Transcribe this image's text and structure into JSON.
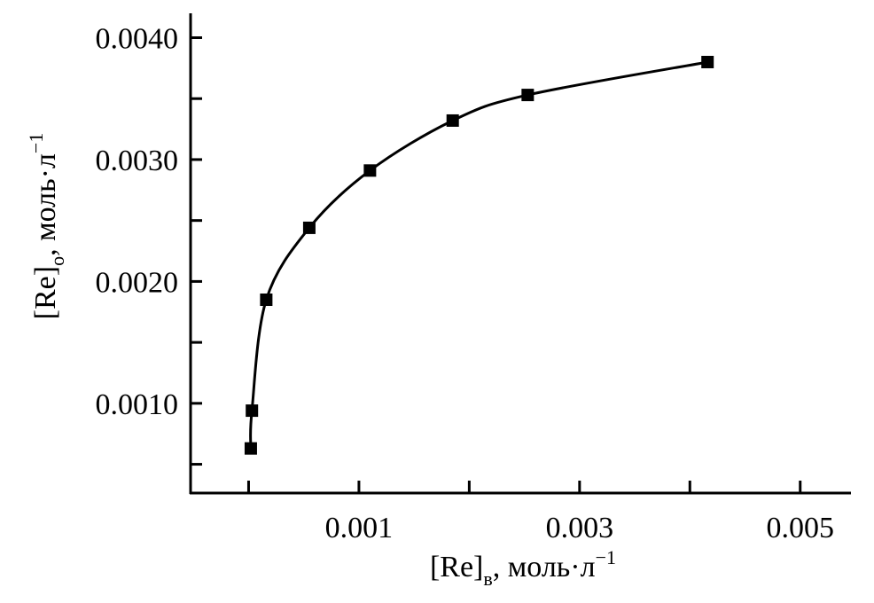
{
  "chart_data": {
    "type": "scatter",
    "x": [
      2e-05,
      3e-05,
      0.00016,
      0.00055,
      0.0011,
      0.00185,
      0.00253,
      0.00416
    ],
    "series": [
      {
        "color": "#000000",
        "values": [
          0.00063,
          0.00094,
          0.00185,
          0.00244,
          0.00291,
          0.00332,
          0.00353,
          0.0038
        ]
      }
    ],
    "xlim": [
      -0.000526,
      0.00546
    ],
    "ylim": [
      0.000264,
      0.0042
    ],
    "xticks": [
      0.001,
      0.003,
      0.005
    ],
    "xminorticks": [
      0,
      0.002,
      0.004
    ],
    "yticks": [
      {
        "value": 0.001,
        "label": "0.0010"
      },
      {
        "value": 0.002,
        "label": "0.0020"
      },
      {
        "value": 0.003,
        "label": "0.0030"
      },
      {
        "value": 0.004,
        "label": "0.0040"
      }
    ],
    "yminorticks": [
      0.0005,
      0.0015,
      0.0025,
      0.0035
    ],
    "xlabel": {
      "main": "[Re]",
      "sub": "в",
      "rest": ", моль·л",
      "sup": "−1"
    },
    "ylabel": {
      "main": "[Re]",
      "sub": "о",
      "rest": ", моль·л",
      "sup": "−1"
    }
  }
}
